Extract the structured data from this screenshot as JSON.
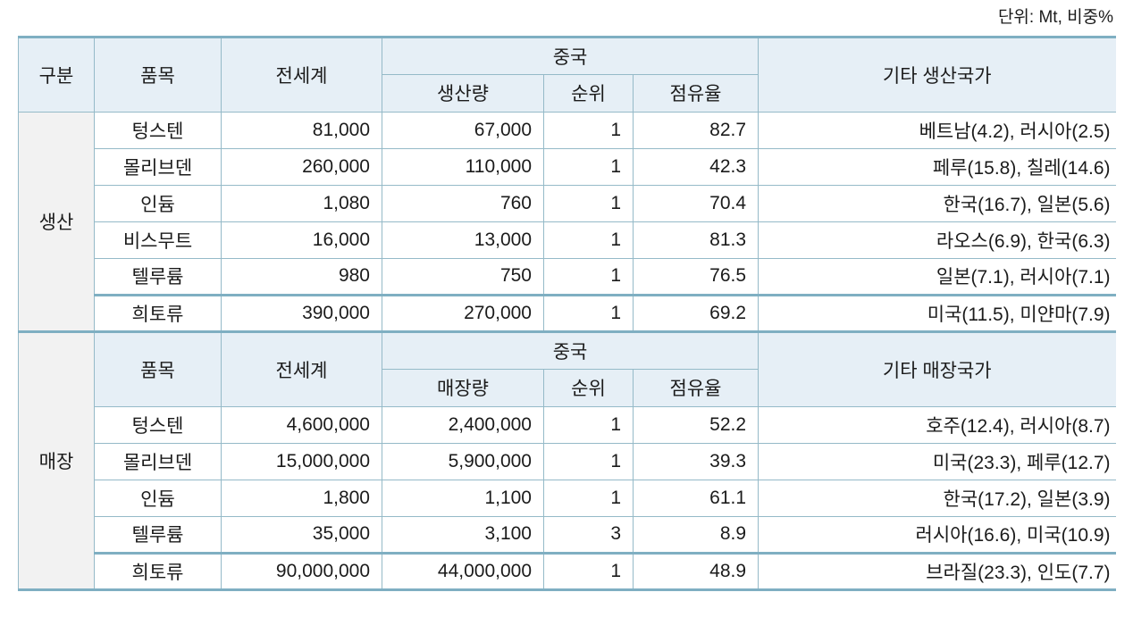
{
  "unit_note": "단위: Mt, 비중%",
  "colors": {
    "header_bg": "#e6eff6",
    "group_bg": "#f2f2f2",
    "thin_border": "#95bac8",
    "thick_border": "#7fafc2",
    "text": "#1b1b1b"
  },
  "table": {
    "sections": [
      {
        "group_col_header": "구분",
        "group_label": "생산",
        "headers": {
          "item": "품목",
          "world": "전세계",
          "china": "중국",
          "amount": "생산량",
          "rank": "순위",
          "share": "점유율",
          "others": "기타 생산국가"
        },
        "rows": [
          {
            "item": "텅스텐",
            "world": "81,000",
            "amount": "67,000",
            "rank": "1",
            "share": "82.7",
            "others": "베트남(4.2), 러시아(2.5)"
          },
          {
            "item": "몰리브덴",
            "world": "260,000",
            "amount": "110,000",
            "rank": "1",
            "share": "42.3",
            "others": "페루(15.8), 칠레(14.6)"
          },
          {
            "item": "인듐",
            "world": "1,080",
            "amount": "760",
            "rank": "1",
            "share": "70.4",
            "others": "한국(16.7), 일본(5.6)"
          },
          {
            "item": "비스무트",
            "world": "16,000",
            "amount": "13,000",
            "rank": "1",
            "share": "81.3",
            "others": "라오스(6.9), 한국(6.3)"
          },
          {
            "item": "텔루륨",
            "world": "980",
            "amount": "750",
            "rank": "1",
            "share": "76.5",
            "others": "일본(7.1), 러시아(7.1)"
          },
          {
            "item": "희토류",
            "world": "390,000",
            "amount": "270,000",
            "rank": "1",
            "share": "69.2",
            "others": "미국(11.5), 미얀마(7.9)"
          }
        ]
      },
      {
        "group_label": "매장",
        "headers": {
          "item": "품목",
          "world": "전세계",
          "china": "중국",
          "amount": "매장량",
          "rank": "순위",
          "share": "점유율",
          "others": "기타 매장국가"
        },
        "rows": [
          {
            "item": "텅스텐",
            "world": "4,600,000",
            "amount": "2,400,000",
            "rank": "1",
            "share": "52.2",
            "others": "호주(12.4), 러시아(8.7)"
          },
          {
            "item": "몰리브덴",
            "world": "15,000,000",
            "amount": "5,900,000",
            "rank": "1",
            "share": "39.3",
            "others": "미국(23.3), 페루(12.7)"
          },
          {
            "item": "인듐",
            "world": "1,800",
            "amount": "1,100",
            "rank": "1",
            "share": "61.1",
            "others": "한국(17.2), 일본(3.9)"
          },
          {
            "item": "텔루륨",
            "world": "35,000",
            "amount": "3,100",
            "rank": "3",
            "share": "8.9",
            "others": "러시아(16.6), 미국(10.9)"
          },
          {
            "item": "희토류",
            "world": "90,000,000",
            "amount": "44,000,000",
            "rank": "1",
            "share": "48.9",
            "others": "브라질(23.3), 인도(7.7)"
          }
        ]
      }
    ]
  }
}
